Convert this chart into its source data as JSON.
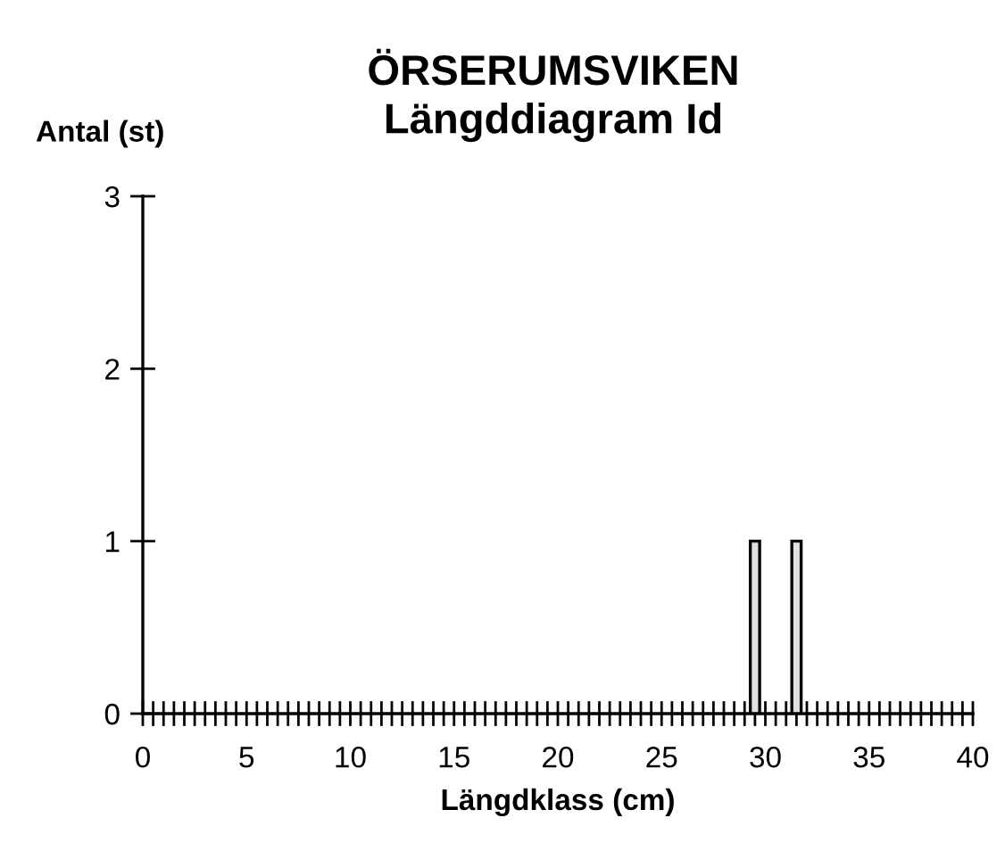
{
  "chart_data": {
    "type": "bar",
    "title": "ÖRSERUMSVIKEN\nLängddiagram Id",
    "xlabel": "Längdklass (cm)",
    "ylabel": "Antal (st)",
    "x": [
      29.5,
      31.5
    ],
    "values": [
      1,
      1
    ],
    "color": "#e0e0e0",
    "xlim": [
      0,
      40
    ],
    "ylim": [
      0,
      3
    ],
    "xticks": [
      0,
      {
        "value": 0.5,
        "label": null
      },
      {
        "value": 1,
        "label": null
      },
      {
        "value": 1.5,
        "label": null
      },
      {
        "value": 2,
        "label": null
      },
      {
        "value": 2.5,
        "label": null
      },
      {
        "value": 3,
        "label": null
      },
      {
        "value": 3.5,
        "label": null
      },
      {
        "value": 4,
        "label": null
      },
      {
        "value": 4.5,
        "label": null
      },
      5,
      {
        "value": 5.5,
        "label": null
      },
      {
        "value": 6,
        "label": null
      },
      {
        "value": 6.5,
        "label": null
      },
      {
        "value": 7,
        "label": null
      },
      {
        "value": 7.5,
        "label": null
      },
      {
        "value": 8,
        "label": null
      },
      {
        "value": 8.5,
        "label": null
      },
      {
        "value": 9,
        "label": null
      },
      {
        "value": 9.5,
        "label": null
      },
      10,
      {
        "value": 10.5,
        "label": null
      },
      {
        "value": 11,
        "label": null
      },
      {
        "value": 11.5,
        "label": null
      },
      {
        "value": 12,
        "label": null
      },
      {
        "value": 12.5,
        "label": null
      },
      {
        "value": 13,
        "label": null
      },
      {
        "value": 13.5,
        "label": null
      },
      {
        "value": 14,
        "label": null
      },
      {
        "value": 14.5,
        "label": null
      },
      15,
      {
        "value": 15.5,
        "label": null
      },
      {
        "value": 16,
        "label": null
      },
      {
        "value": 16.5,
        "label": null
      },
      {
        "value": 17,
        "label": null
      },
      {
        "value": 17.5,
        "label": null
      },
      {
        "value": 18,
        "label": null
      },
      {
        "value": 18.5,
        "label": null
      },
      {
        "value": 19,
        "label": null
      },
      {
        "value": 19.5,
        "label": null
      },
      20,
      {
        "value": 20.5,
        "label": null
      },
      {
        "value": 21,
        "label": null
      },
      {
        "value": 21.5,
        "label": null
      },
      {
        "value": 22,
        "label": null
      },
      {
        "value": 22.5,
        "label": null
      },
      {
        "value": 23,
        "label": null
      },
      {
        "value": 23.5,
        "label": null
      },
      {
        "value": 24,
        "label": null
      },
      {
        "value": 24.5,
        "label": null
      },
      25,
      {
        "value": 25.5,
        "label": null
      },
      {
        "value": 26,
        "label": null
      },
      {
        "value": 26.5,
        "label": null
      },
      {
        "value": 27,
        "label": null
      },
      {
        "value": 27.5,
        "label": null
      },
      {
        "value": 28,
        "label": null
      },
      {
        "value": 28.5,
        "label": null
      },
      {
        "value": 29,
        "label": null
      },
      {
        "value": 29.5,
        "label": null
      },
      30,
      {
        "value": 30.5,
        "label": null
      },
      {
        "value": 31,
        "label": null
      },
      {
        "value": 31.5,
        "label": null
      },
      {
        "value": 32,
        "label": null
      },
      {
        "value": 32.5,
        "label": null
      },
      {
        "value": 33,
        "label": null
      },
      {
        "value": 33.5,
        "label": null
      },
      {
        "value": 34,
        "label": null
      },
      {
        "value": 34.5,
        "label": null
      },
      35,
      {
        "value": 35.5,
        "label": null
      },
      {
        "value": 36,
        "label": null
      },
      {
        "value": 36.5,
        "label": null
      },
      {
        "value": 37,
        "label": null
      },
      {
        "value": 37.5,
        "label": null
      },
      {
        "value": 38,
        "label": null
      },
      {
        "value": 38.5,
        "label": null
      },
      {
        "value": 39,
        "label": null
      },
      {
        "value": 39.5,
        "label": null
      },
      40
    ],
    "yticks": [
      0,
      1,
      2,
      3
    ],
    "grid": false,
    "legend": false
  }
}
